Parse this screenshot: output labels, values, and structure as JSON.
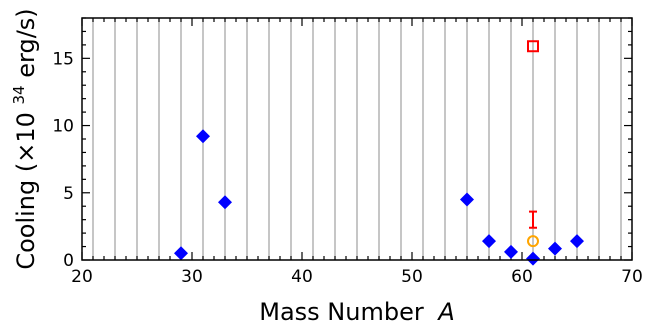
{
  "chart_data": {
    "type": "scatter",
    "xlabel": "Mass Number",
    "xlabel_italic": "A",
    "ylabel_prefix": "Cooling (×10",
    "ylabel_exp": "34",
    "ylabel_suffix": " erg/s)",
    "xlim": [
      20,
      70
    ],
    "ylim": [
      0,
      18
    ],
    "xticks": [
      "20",
      "30",
      "40",
      "50",
      "60",
      "70"
    ],
    "yticks": [
      "0",
      "5",
      "10",
      "15"
    ],
    "grid": "vertical lines at every odd mass number",
    "series": [
      {
        "marker": "diamond",
        "color": "#0000ff",
        "points": [
          {
            "x": 29,
            "y": 0.5
          },
          {
            "x": 31,
            "y": 9.2
          },
          {
            "x": 33,
            "y": 4.3
          },
          {
            "x": 55,
            "y": 4.5
          },
          {
            "x": 57,
            "y": 1.4
          },
          {
            "x": 59,
            "y": 0.6
          },
          {
            "x": 61,
            "y": 0.1
          },
          {
            "x": 63,
            "y": 0.85
          },
          {
            "x": 65,
            "y": 1.4
          }
        ]
      },
      {
        "marker": "square",
        "color": "#ff0000",
        "points": [
          {
            "x": 61,
            "y": 15.9
          }
        ]
      },
      {
        "marker": "errorbar",
        "color": "#ff0000",
        "points": [
          {
            "x": 61,
            "ylow": 2.4,
            "yhigh": 3.6
          }
        ]
      },
      {
        "marker": "circle",
        "color": "#ffa500",
        "points": [
          {
            "x": 61,
            "y": 1.4
          }
        ]
      }
    ]
  }
}
